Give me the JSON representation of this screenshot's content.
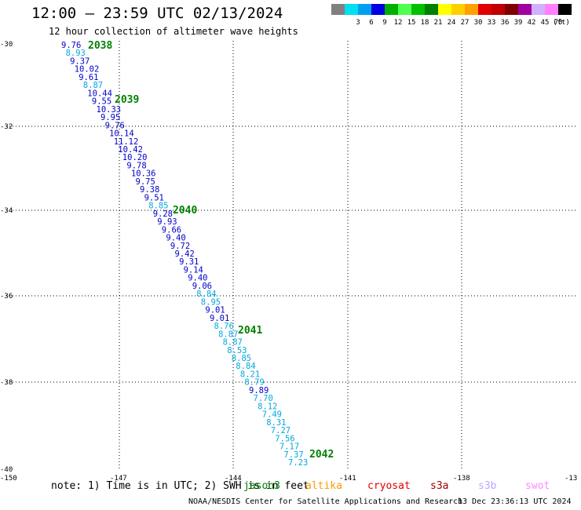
{
  "header": {
    "title": "12:00 – 23:59 UTC 02/13/2024",
    "subtitle": "12 hour collection of altimeter wave heights"
  },
  "legend": {
    "unit": "(ft)",
    "swatches": [
      {
        "color": "#808080",
        "label": ""
      },
      {
        "color": "#00e0f0",
        "label": "3"
      },
      {
        "color": "#00a0f0",
        "label": "6"
      },
      {
        "color": "#0000e0",
        "label": "9"
      },
      {
        "color": "#00b000",
        "label": "12"
      },
      {
        "color": "#50ff50",
        "label": "15"
      },
      {
        "color": "#00c000",
        "label": "18"
      },
      {
        "color": "#008000",
        "label": "21"
      },
      {
        "color": "#ffff00",
        "label": "24"
      },
      {
        "color": "#ffd000",
        "label": "27"
      },
      {
        "color": "#ffa000",
        "label": "30"
      },
      {
        "color": "#e00000",
        "label": "33"
      },
      {
        "color": "#c00000",
        "label": "36"
      },
      {
        "color": "#800000",
        "label": "39"
      },
      {
        "color": "#a000a0",
        "label": "42"
      },
      {
        "color": "#d0b0ff",
        "label": "45"
      },
      {
        "color": "#ff80ff",
        "label": "70"
      },
      {
        "color": "#000000",
        "label": ""
      }
    ]
  },
  "map": {
    "lon_labels": [
      "-150",
      "-147",
      "-144",
      "-141",
      "-138",
      "-13"
    ],
    "lat_labels": [
      "-30",
      "-32",
      "-34",
      "-36",
      "-38",
      "-40"
    ],
    "track_labels": [
      {
        "text": "2038",
        "color": "#008000"
      },
      {
        "text": "2039",
        "color": "#008000"
      },
      {
        "text": "2040",
        "color": "#008000"
      },
      {
        "text": "2041",
        "color": "#008000"
      },
      {
        "text": "2042",
        "color": "#008000"
      }
    ],
    "readings": [
      {
        "v": "9.76",
        "c": "#0000c8"
      },
      {
        "v": "8.93",
        "c": "#00a8e0"
      },
      {
        "v": "9.37",
        "c": "#0000c8"
      },
      {
        "v": "10.02",
        "c": "#0000c8"
      },
      {
        "v": "9.61",
        "c": "#0000c8"
      },
      {
        "v": "8.87",
        "c": "#00a8e0"
      },
      {
        "v": "10.44",
        "c": "#0000c8"
      },
      {
        "v": "9.55",
        "c": "#0000c8"
      },
      {
        "v": "10.33",
        "c": "#0000c8"
      },
      {
        "v": "9.95",
        "c": "#0000c8"
      },
      {
        "v": "9.76",
        "c": "#0000c8"
      },
      {
        "v": "10.14",
        "c": "#0000c8"
      },
      {
        "v": "11.12",
        "c": "#0000c8"
      },
      {
        "v": "10.42",
        "c": "#0000c8"
      },
      {
        "v": "10.20",
        "c": "#0000c8"
      },
      {
        "v": "9.78",
        "c": "#0000c8"
      },
      {
        "v": "10.36",
        "c": "#0000c8"
      },
      {
        "v": "9.75",
        "c": "#0000c8"
      },
      {
        "v": "9.38",
        "c": "#0000c8"
      },
      {
        "v": "9.51",
        "c": "#0000c8"
      },
      {
        "v": "8.85",
        "c": "#00a8e0"
      },
      {
        "v": "9.28",
        "c": "#0000c8"
      },
      {
        "v": "9.93",
        "c": "#0000c8"
      },
      {
        "v": "9.66",
        "c": "#0000c8"
      },
      {
        "v": "9.40",
        "c": "#0000c8"
      },
      {
        "v": "9.72",
        "c": "#0000c8"
      },
      {
        "v": "9.42",
        "c": "#0000c8"
      },
      {
        "v": "9.31",
        "c": "#0000c8"
      },
      {
        "v": "9.14",
        "c": "#0000c8"
      },
      {
        "v": "9.40",
        "c": "#0000c8"
      },
      {
        "v": "9.06",
        "c": "#0000c8"
      },
      {
        "v": "8.84",
        "c": "#00a8e0"
      },
      {
        "v": "8.95",
        "c": "#00a8e0"
      },
      {
        "v": "9.01",
        "c": "#0000c8"
      },
      {
        "v": "9.01",
        "c": "#0000c8"
      },
      {
        "v": "8.76",
        "c": "#00a8e0"
      },
      {
        "v": "8.87",
        "c": "#00a8e0"
      },
      {
        "v": "8.87",
        "c": "#00a8e0"
      },
      {
        "v": "8.53",
        "c": "#00a8e0"
      },
      {
        "v": "8.85",
        "c": "#00a8e0"
      },
      {
        "v": "8.84",
        "c": "#00a8e0"
      },
      {
        "v": "8.21",
        "c": "#00a8e0"
      },
      {
        "v": "8.79",
        "c": "#00a8e0"
      },
      {
        "v": "9.89",
        "c": "#0000c8"
      },
      {
        "v": "7.70",
        "c": "#00a8e0"
      },
      {
        "v": "8.12",
        "c": "#00a8e0"
      },
      {
        "v": "7.49",
        "c": "#00a8e0"
      },
      {
        "v": "8.31",
        "c": "#00a8e0"
      },
      {
        "v": "7.27",
        "c": "#00a8e0"
      },
      {
        "v": "7.56",
        "c": "#00a8e0"
      },
      {
        "v": "7.17",
        "c": "#00a8e0"
      },
      {
        "v": "7.37",
        "c": "#00a8e0"
      },
      {
        "v": "7.23",
        "c": "#00a8e0"
      }
    ]
  },
  "note": "note: 1) Time is in UTC; 2) SWH is in feet",
  "satellites": [
    {
      "name": "jason3",
      "color": "#008000"
    },
    {
      "name": "altika",
      "color": "#ff9900"
    },
    {
      "name": "cryosat",
      "color": "#e00000"
    },
    {
      "name": "s3a",
      "color": "#a00000"
    },
    {
      "name": "s3b",
      "color": "#c0a8ff"
    },
    {
      "name": "swot",
      "color": "#ff88ff"
    }
  ],
  "footer": {
    "credit": "NOAA/NESDIS Center for Satellite Applications and Research",
    "timestamp": "13 Dec 23:36:13 UTC 2024"
  }
}
